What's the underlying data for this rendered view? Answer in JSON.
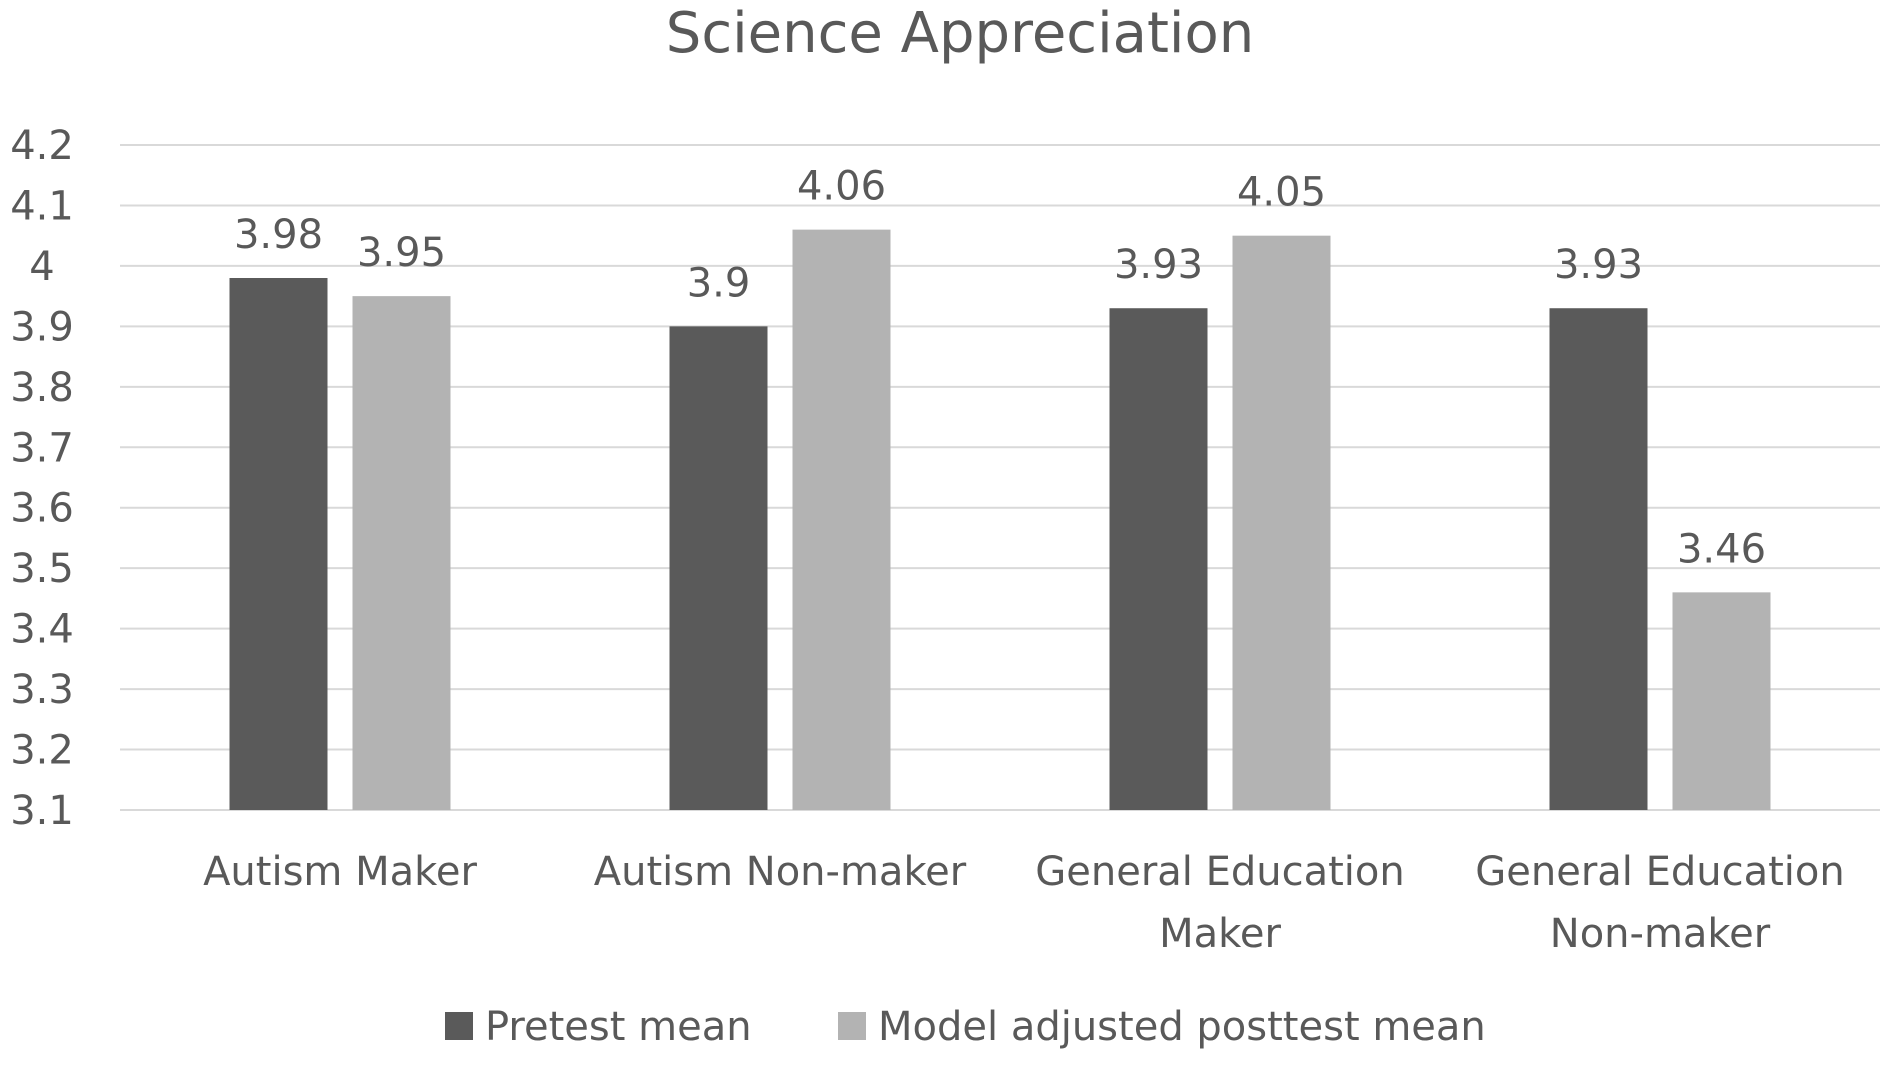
{
  "chart_data": {
    "type": "bar",
    "title": "Science Appreciation",
    "categories": [
      [
        "Autism Maker"
      ],
      [
        "Autism Non-maker"
      ],
      [
        "General Education",
        "Maker"
      ],
      [
        "General Education",
        "Non-maker"
      ]
    ],
    "series": [
      {
        "name": "Pretest mean",
        "color": "#5a5a5a",
        "values": [
          3.98,
          3.9,
          3.93,
          3.93
        ],
        "labels": [
          "3.98",
          "3.9",
          "3.93",
          "3.93"
        ]
      },
      {
        "name": "Model adjusted posttest mean",
        "color": "#b3b3b3",
        "values": [
          3.95,
          4.06,
          4.05,
          3.46
        ],
        "labels": [
          "3.95",
          "4.06",
          "4.05",
          "3.46"
        ]
      }
    ],
    "ylim": [
      3.1,
      4.2
    ],
    "yticks": [
      "3.1",
      "3.2",
      "3.3",
      "3.4",
      "3.5",
      "3.6",
      "3.7",
      "3.8",
      "3.9",
      "4",
      "4.1",
      "4.2"
    ],
    "xlabel": "",
    "ylabel": "",
    "grid": true,
    "legend_position": "bottom",
    "colors": {
      "text": "#595959",
      "grid": "#d9d9d9"
    }
  }
}
